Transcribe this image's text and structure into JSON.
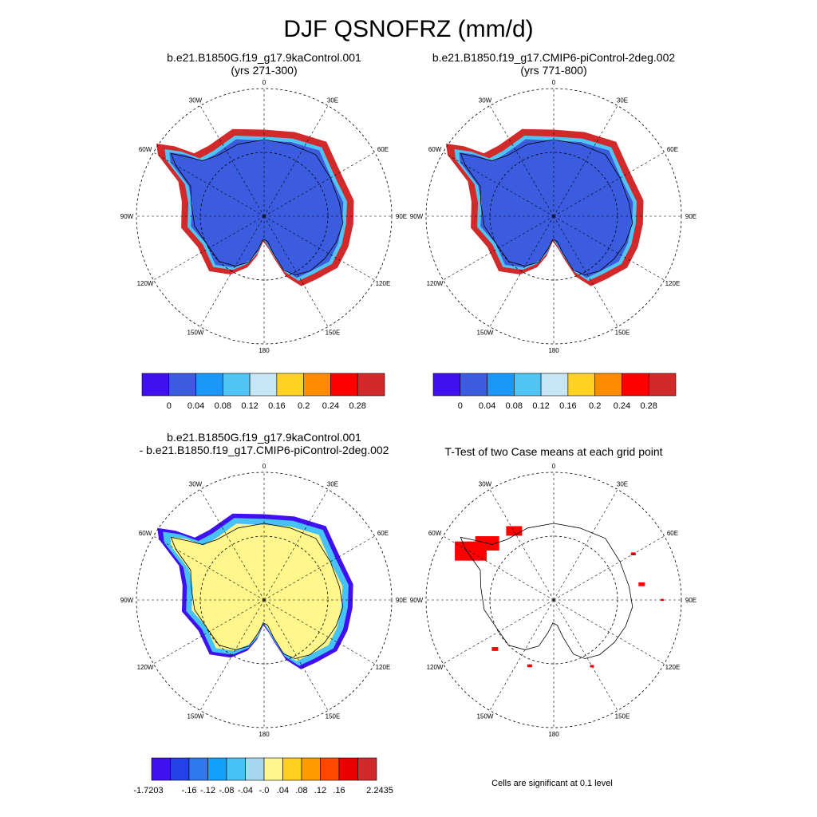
{
  "title": "DJF QSNOFRZ (mm/d)",
  "lon_labels": [
    "0",
    "30E",
    "60E",
    "90E",
    "120E",
    "150E",
    "180",
    "150W",
    "120W",
    "90W",
    "60W",
    "30W"
  ],
  "chart_data": [
    {
      "type": "heatmap",
      "projection": "south-polar-stereographic",
      "title_line1": "b.e21.B1850G.f19_g17.9kaControl.001",
      "title_line2": "(yrs 271-300)",
      "colorbar": {
        "labels": [
          "0",
          "0.04",
          "0.08",
          "0.12",
          "0.16",
          "0.2",
          "0.24",
          "0.28"
        ],
        "colors": [
          "#4010f0",
          "#3c5ce0",
          "#1a98fa",
          "#50c4f4",
          "#c6e6f6",
          "#ffd224",
          "#ff8c00",
          "#ff0000",
          "#d22a2a"
        ]
      }
    },
    {
      "type": "heatmap",
      "projection": "south-polar-stereographic",
      "title_line1": "b.e21.B1850.f19_g17.CMIP6-piControl-2deg.002",
      "title_line2": "(yrs 771-800)",
      "colorbar": {
        "labels": [
          "0",
          "0.04",
          "0.08",
          "0.12",
          "0.16",
          "0.2",
          "0.24",
          "0.28"
        ],
        "colors": [
          "#4010f0",
          "#3c5ce0",
          "#1a98fa",
          "#50c4f4",
          "#c6e6f6",
          "#ffd224",
          "#ff8c00",
          "#ff0000",
          "#d22a2a"
        ]
      }
    },
    {
      "type": "heatmap",
      "projection": "south-polar-stereographic",
      "title_line1": "b.e21.B1850G.f19_g17.9kaControl.001",
      "title_line2": "- b.e21.B1850.f19_g17.CMIP6-piControl-2deg.002",
      "colorbar": {
        "labels": [
          "-1.7203",
          "-.16",
          "-.12",
          "-.08",
          "-.04",
          "-.0",
          ".04",
          ".08",
          ".12",
          ".16",
          "2.2435"
        ],
        "colors": [
          "#4010f0",
          "#2440e8",
          "#3078ee",
          "#12a0fa",
          "#46c2f6",
          "#a8d8f0",
          "#fff68c",
          "#ffd020",
          "#ff9a00",
          "#ff4800",
          "#ee0000",
          "#d22a2a"
        ]
      }
    },
    {
      "type": "heatmap",
      "projection": "south-polar-stereographic",
      "title_line1": "T-Test of two Case means at each grid point",
      "title_line2": "",
      "note": "Cells are significant at 0.1 level",
      "color": "#ff0000"
    }
  ]
}
